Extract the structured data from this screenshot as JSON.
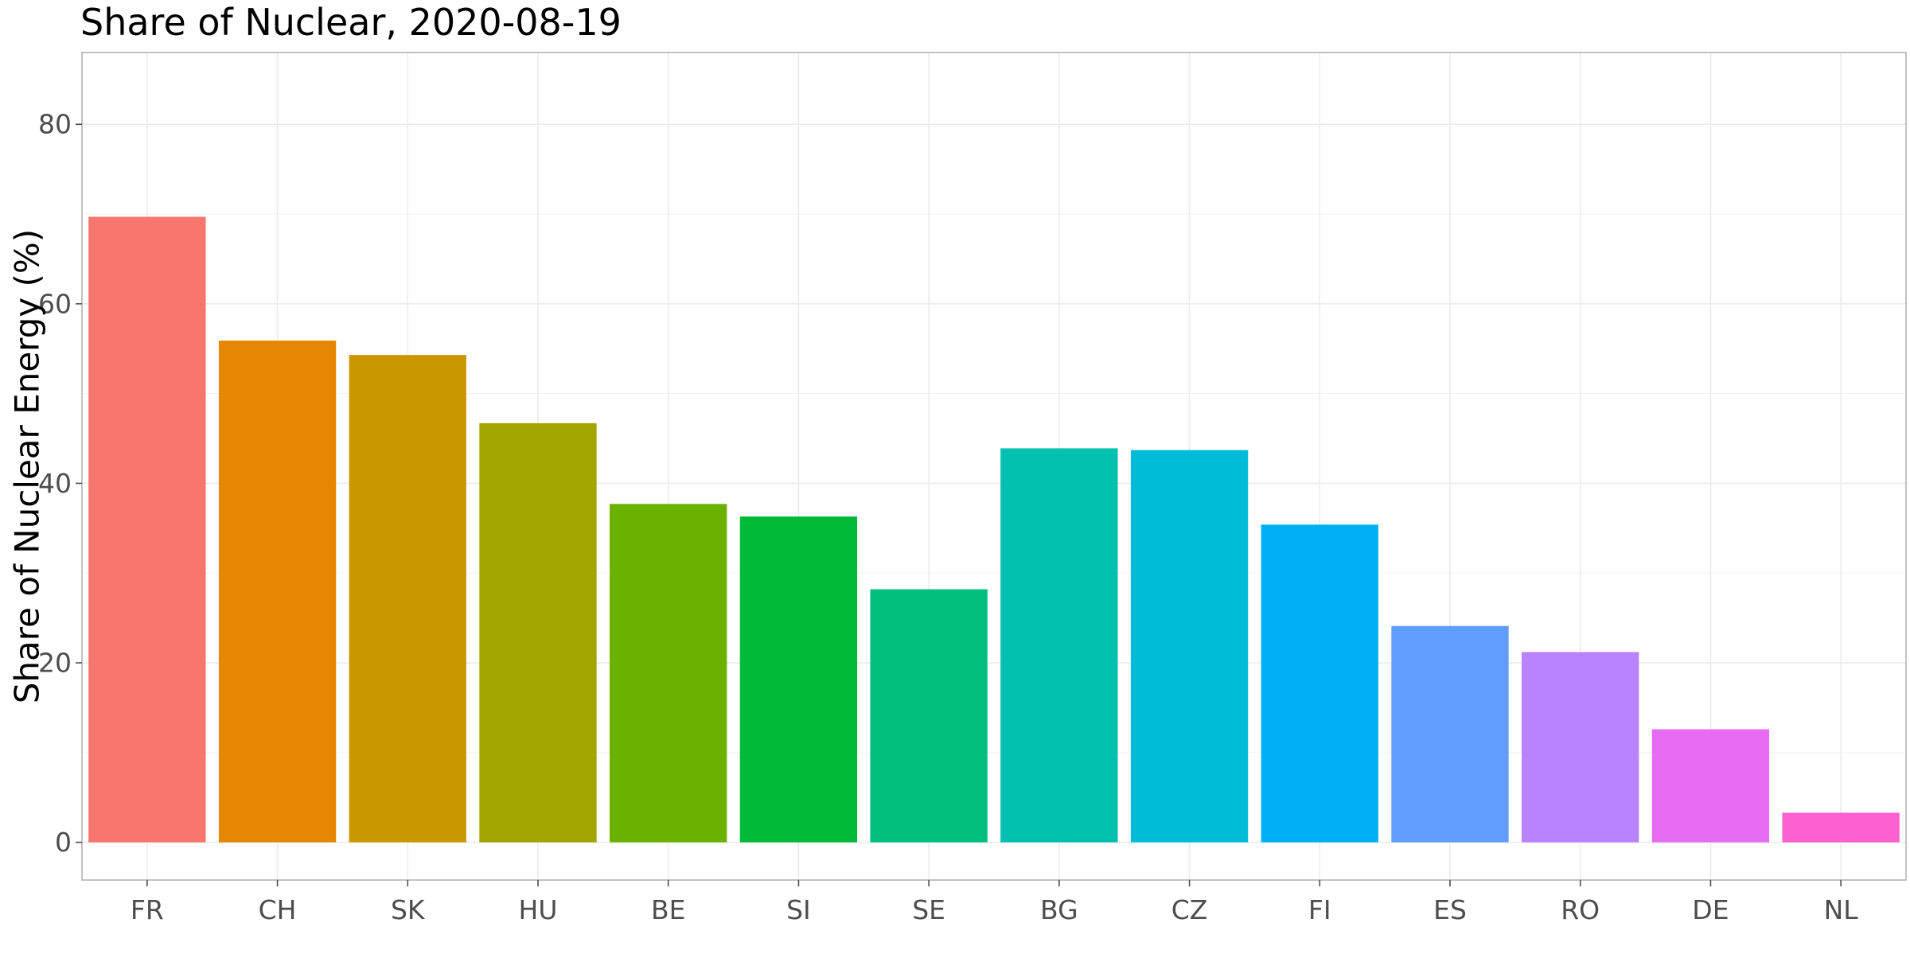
{
  "chart_data": {
    "type": "bar",
    "title": "Share of Nuclear, 2020-08-19",
    "xlabel": "",
    "ylabel": "Share of Nuclear Energy (%)",
    "categories": [
      "FR",
      "CH",
      "SK",
      "HU",
      "BE",
      "SI",
      "SE",
      "BG",
      "CZ",
      "FI",
      "ES",
      "RO",
      "DE",
      "NL"
    ],
    "values": [
      69.7,
      55.9,
      54.3,
      46.7,
      37.7,
      36.3,
      28.2,
      43.9,
      43.7,
      35.4,
      24.1,
      21.2,
      12.6,
      3.3
    ],
    "colors": [
      "#F8766D",
      "#E58700",
      "#C99800",
      "#A3A500",
      "#6BB100",
      "#00BA38",
      "#00BF7D",
      "#00C0AF",
      "#00BCD8",
      "#00B0F6",
      "#619CFF",
      "#B983FF",
      "#E76BF3",
      "#FD61D1"
    ],
    "ylim": [
      -4.2,
      88
    ],
    "yticks": [
      0,
      20,
      40,
      60,
      80
    ],
    "ytick_labels": [
      "0",
      "20",
      "40",
      "60",
      "80"
    ],
    "grid": true,
    "legend": "none"
  }
}
